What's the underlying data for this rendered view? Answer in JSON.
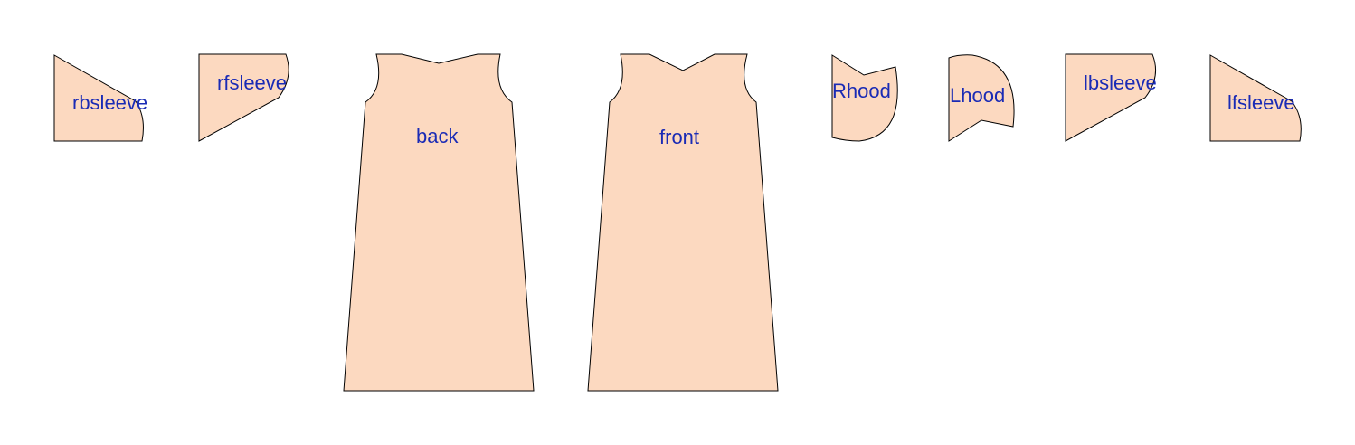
{
  "diagram": {
    "fill_color": "#fcd9c0",
    "stroke_color": "#000000",
    "label_color": "#1a2bb5",
    "pieces": [
      {
        "id": "rbsleeve",
        "label": "rbsleeve"
      },
      {
        "id": "rfsleeve",
        "label": "rfsleeve"
      },
      {
        "id": "back",
        "label": "back"
      },
      {
        "id": "front",
        "label": "front"
      },
      {
        "id": "rhood",
        "label": "Rhood"
      },
      {
        "id": "lhood",
        "label": "Lhood"
      },
      {
        "id": "lbsleeve",
        "label": "lbsleeve"
      },
      {
        "id": "lfsleeve",
        "label": "lfsleeve"
      }
    ]
  }
}
